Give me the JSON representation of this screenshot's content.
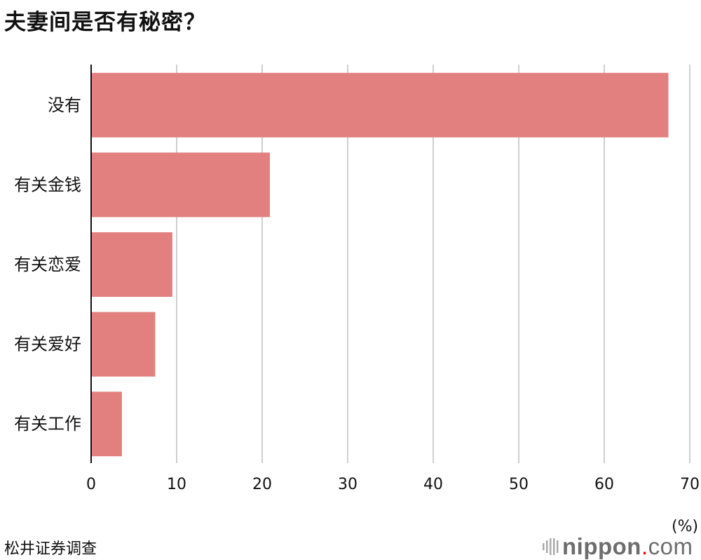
{
  "chart_data": {
    "type": "bar",
    "orientation": "horizontal",
    "title": "夫妻间是否有秘密？",
    "categories": [
      "没有",
      "有关金钱",
      "有关恋爱",
      "有关爱好",
      "有关工作"
    ],
    "values": [
      67.5,
      20.9,
      9.5,
      7.5,
      3.6
    ],
    "xlabel": "(%)",
    "ylabel": "",
    "xlim": [
      0,
      70
    ],
    "xticks": [
      0,
      10,
      20,
      30,
      40,
      50,
      60,
      70
    ],
    "grid": true,
    "bar_color": "#e28080",
    "source": "松井证券调查"
  },
  "logo": {
    "text_bold": "nippon",
    "dot": ".",
    "text_light": "com",
    "dot_color": "#e60012"
  }
}
